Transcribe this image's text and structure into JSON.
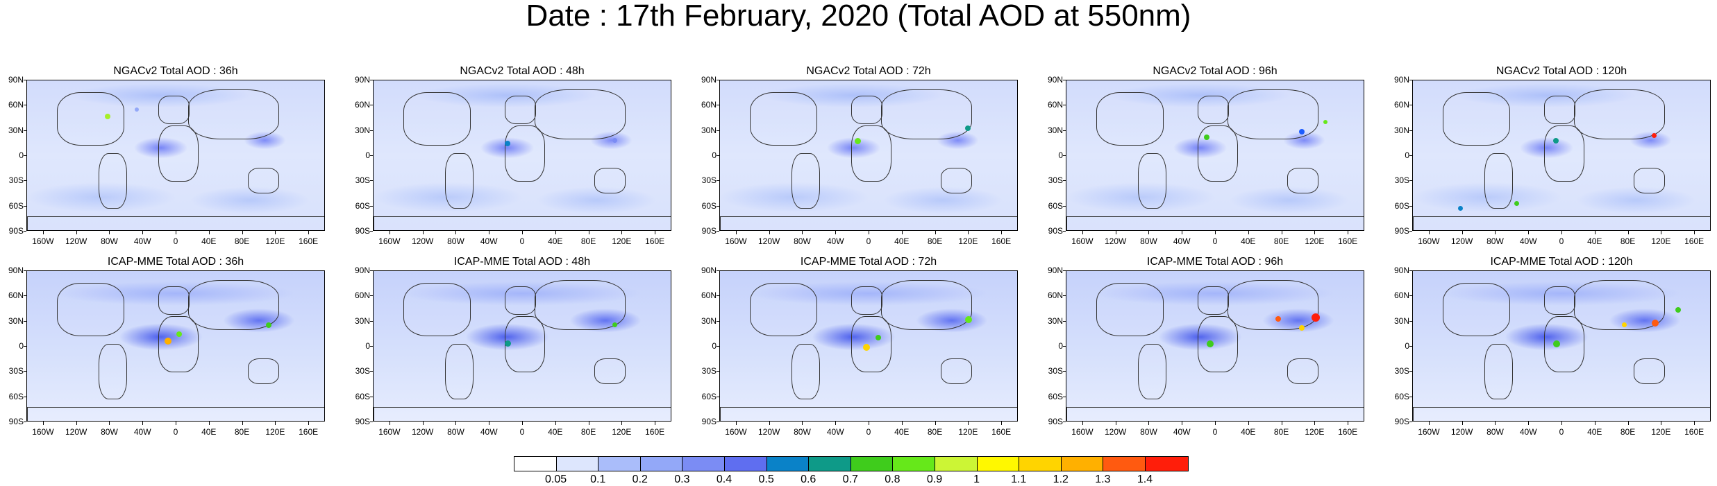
{
  "title": "Date : 17th February, 2020 (Total AOD at 550nm)",
  "panels": [
    {
      "title": "NGACv2 Total AOD : 36h",
      "model": "NGACv2",
      "lead": "36h"
    },
    {
      "title": "NGACv2 Total AOD : 48h",
      "model": "NGACv2",
      "lead": "48h"
    },
    {
      "title": "NGACv2 Total AOD : 72h",
      "model": "NGACv2",
      "lead": "72h"
    },
    {
      "title": "NGACv2 Total AOD : 96h",
      "model": "NGACv2",
      "lead": "96h"
    },
    {
      "title": "NGACv2 Total AOD : 120h",
      "model": "NGACv2",
      "lead": "120h"
    },
    {
      "title": "ICAP-MME Total AOD : 36h",
      "model": "ICAP-MME",
      "lead": "36h"
    },
    {
      "title": "ICAP-MME Total AOD : 48h",
      "model": "ICAP-MME",
      "lead": "48h"
    },
    {
      "title": "ICAP-MME Total AOD : 72h",
      "model": "ICAP-MME",
      "lead": "72h"
    },
    {
      "title": "ICAP-MME Total AOD : 96h",
      "model": "ICAP-MME",
      "lead": "96h"
    },
    {
      "title": "ICAP-MME Total AOD : 120h",
      "model": "ICAP-MME",
      "lead": "120h"
    }
  ],
  "lat_labels": [
    "90N",
    "60N",
    "30N",
    "0",
    "30S",
    "60S",
    "90S"
  ],
  "lon_labels": [
    "160W",
    "120W",
    "80W",
    "40W",
    "0",
    "40E",
    "80E",
    "120E",
    "160E"
  ],
  "colorbar": {
    "colors": [
      "#ffffff",
      "#dde6fd",
      "#c6d3fb",
      "#aabdfa",
      "#93a8f8",
      "#7b8cf4",
      "#5f6ef0",
      "#1c5cff",
      "#0a82c8",
      "#0e9a88",
      "#3fcc1c",
      "#66e81a",
      "#a6ef28",
      "#ccf535",
      "#fff800",
      "#ffd400",
      "#ffb000",
      "#ff8c00",
      "#ff5a10",
      "#ff1e0a"
    ],
    "labels": [
      "0.05",
      "0.1",
      "0.2",
      "0.3",
      "0.4",
      "0.5",
      "0.6",
      "0.7",
      "0.8",
      "0.9",
      "1",
      "1.1",
      "1.2",
      "1.3",
      "1.4"
    ]
  }
}
